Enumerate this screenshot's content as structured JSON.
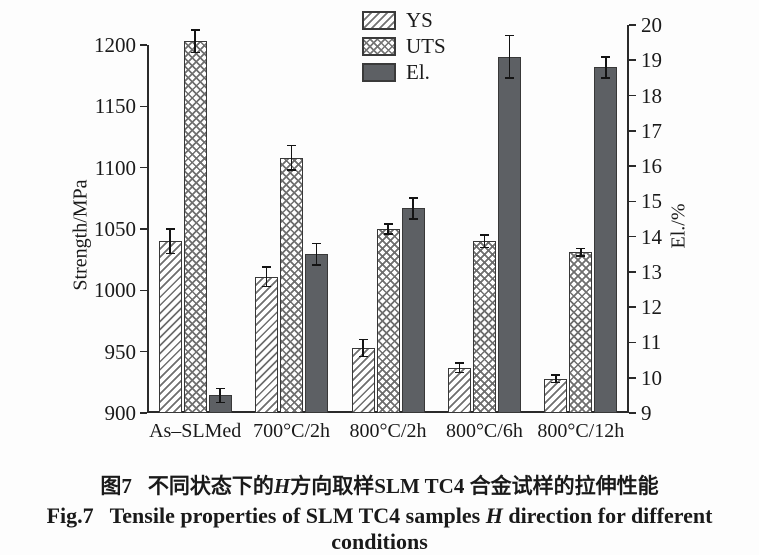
{
  "figure": {
    "caption_cn": {
      "fig_label": "图7",
      "pre": "不同状态下的",
      "italic": "H",
      "post": "方向取样SLM TC4 合金试样的拉伸性能"
    },
    "caption_en": {
      "fig_label": "Fig.7",
      "pre": "Tensile properties of SLM TC4 samples ",
      "italic": "H",
      "post": " direction for different conditions"
    }
  },
  "chart_data": {
    "type": "bar",
    "title": "",
    "categories": [
      "As–SLMed",
      "700°C/2h",
      "800°C/2h",
      "800°C/6h",
      "800°C/12h"
    ],
    "left_axis": {
      "label": "Strength/MPa",
      "min": 900,
      "max": 1200,
      "ticks": [
        900,
        950,
        1000,
        1050,
        1100,
        1150,
        1200
      ]
    },
    "right_axis": {
      "label": "El./%",
      "min": 9,
      "max": 20,
      "ticks": [
        9,
        10,
        11,
        12,
        13,
        14,
        15,
        16,
        17,
        18,
        19,
        20
      ]
    },
    "series": [
      {
        "name": "YS",
        "axis": "left",
        "pattern": "diagonal-hatch",
        "values": [
          1040,
          1011,
          953,
          937,
          928
        ],
        "errors": [
          10,
          8,
          7,
          4,
          3
        ]
      },
      {
        "name": "UTS",
        "axis": "left",
        "pattern": "cross-hatch",
        "values": [
          1203,
          1108,
          1050,
          1040,
          1031
        ],
        "errors": [
          9,
          10,
          4,
          5,
          3
        ]
      },
      {
        "name": "El.",
        "axis": "right",
        "pattern": "solid",
        "values": [
          9.5,
          13.5,
          14.8,
          19.1,
          18.8
        ],
        "errors": [
          0.2,
          0.3,
          0.3,
          0.6,
          0.3
        ]
      }
    ],
    "legend": [
      "YS",
      "UTS",
      "El."
    ],
    "legend_position": "top-center",
    "grid": false,
    "colors": {
      "solid_fill": "#5d6064",
      "bar_border": "#383838",
      "hatch_line": "#6f6f6f",
      "axis": "#2a2a2a",
      "background": "#fdfdfd"
    }
  }
}
